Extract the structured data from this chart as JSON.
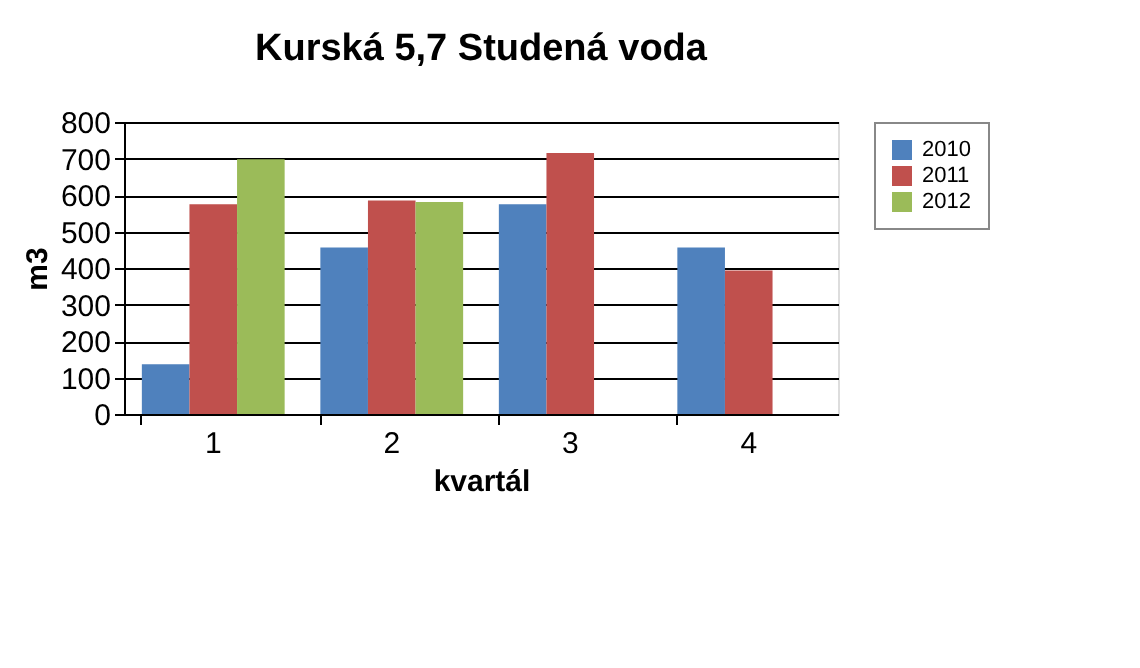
{
  "chart_data": {
    "type": "bar",
    "title": "Kurská 5,7       Studená voda",
    "xlabel": "kvartál",
    "ylabel": "m3",
    "categories": [
      "1",
      "2",
      "3",
      "4"
    ],
    "series": [
      {
        "name": "2010",
        "color": "#4f81bd",
        "values": [
          136,
          456,
          575,
          456
        ]
      },
      {
        "name": "2011",
        "color": "#c0504d",
        "values": [
          575,
          585,
          715,
          393
        ]
      },
      {
        "name": "2012",
        "color": "#9bbb59",
        "values": [
          698,
          581,
          null,
          null
        ]
      }
    ],
    "ylim": [
      0,
      800
    ],
    "yticks": [
      0,
      100,
      200,
      300,
      400,
      500,
      600,
      700,
      800
    ],
    "grid": "y",
    "legend": "right"
  }
}
